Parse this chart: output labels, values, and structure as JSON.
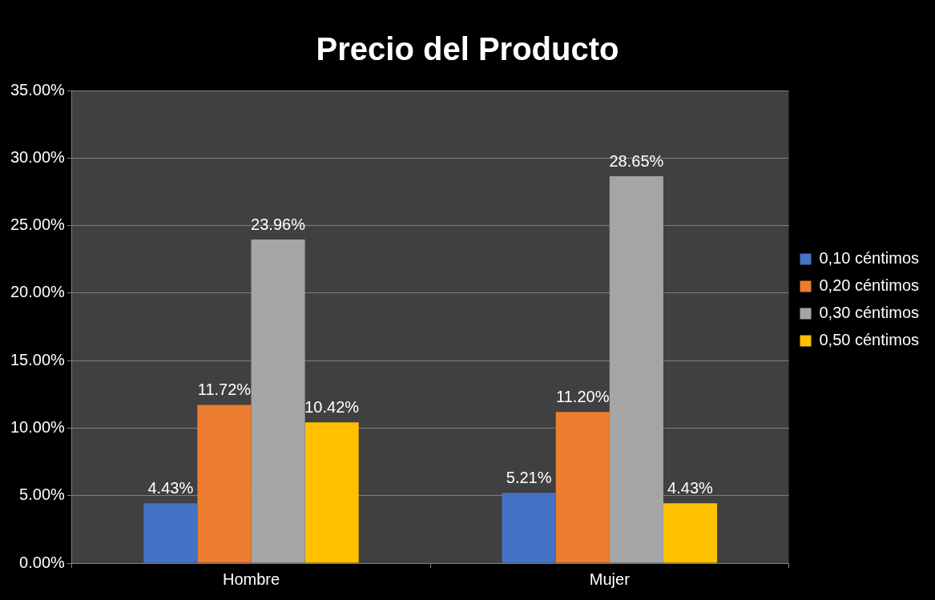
{
  "chart_data": {
    "type": "bar",
    "title": "Precio del Producto",
    "categories": [
      "Hombre",
      "Mujer"
    ],
    "series": [
      {
        "name": "0,10 céntimos",
        "color": "#4472c4",
        "values": [
          4.43,
          5.21
        ],
        "value_labels": [
          "4.43%",
          "5.21%"
        ]
      },
      {
        "name": "0,20 céntimos",
        "color": "#ed7d31",
        "values": [
          11.72,
          11.2
        ],
        "value_labels": [
          "11.72%",
          "11.20%"
        ]
      },
      {
        "name": "0,30 céntimos",
        "color": "#a5a5a5",
        "values": [
          23.96,
          28.65
        ],
        "value_labels": [
          "23.96%",
          "28.65%"
        ]
      },
      {
        "name": "0,50 céntimos",
        "color": "#ffc000",
        "values": [
          10.42,
          4.43
        ],
        "value_labels": [
          "10.42%",
          "4.43%"
        ]
      }
    ],
    "ylim": [
      0,
      35
    ],
    "yticks": [
      {
        "value": 0,
        "label": "0.00%"
      },
      {
        "value": 5,
        "label": "5.00%"
      },
      {
        "value": 10,
        "label": "10.00%"
      },
      {
        "value": 15,
        "label": "15.00%"
      },
      {
        "value": 20,
        "label": "20.00%"
      },
      {
        "value": 25,
        "label": "25.00%"
      },
      {
        "value": 30,
        "label": "30.00%"
      },
      {
        "value": 35,
        "label": "35.00%"
      }
    ],
    "grid": "y",
    "legend": "right"
  }
}
